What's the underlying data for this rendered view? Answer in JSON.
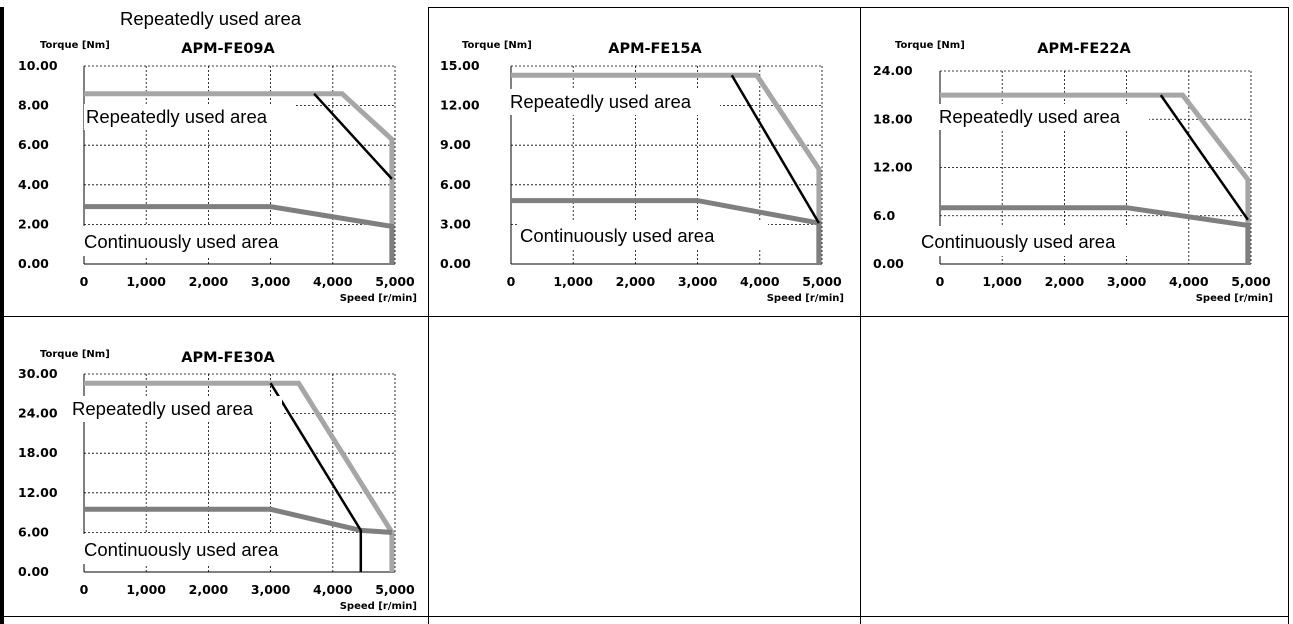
{
  "top_caption": "Repeatedly used area",
  "colors": {
    "peak_line": "#a6a6a6",
    "rated_line": "#7f7f7f",
    "limit_line": "#000000",
    "grid": "#000000"
  },
  "chart_data": [
    {
      "type": "line",
      "title": "APM-FE09A",
      "ylabel": "Torque [Nm]",
      "xlabel": "Speed [r/min]",
      "xlim": [
        0,
        5000
      ],
      "ylim": [
        0,
        10
      ],
      "x_ticks": [
        "0",
        "1,000",
        "2,000",
        "3,000",
        "4,000",
        "5,000"
      ],
      "y_ticks": [
        "0.00",
        "2.00",
        "4.00",
        "6.00",
        "8.00",
        "10.00"
      ],
      "grid": true,
      "annotations": [
        "Repeatedly used area",
        "Continuously used area"
      ],
      "series": [
        {
          "points": [
            [
              0,
              8.6
            ],
            [
              4150,
              8.6
            ],
            [
              4950,
              6.3
            ],
            [
              4950,
              0
            ]
          ]
        },
        {
          "points": [
            [
              0,
              2.9
            ],
            [
              3000,
              2.9
            ],
            [
              4950,
              1.9
            ],
            [
              4950,
              0
            ]
          ]
        },
        {
          "points": [
            [
              3700,
              8.6
            ],
            [
              4950,
              4.3
            ]
          ]
        }
      ]
    },
    {
      "type": "line",
      "title": "APM-FE15A",
      "ylabel": "Torque [Nm]",
      "xlabel": "Speed [r/min]",
      "xlim": [
        0,
        5000
      ],
      "ylim": [
        0,
        15
      ],
      "x_ticks": [
        "0",
        "1,000",
        "2,000",
        "3,000",
        "4,000",
        "5,000"
      ],
      "y_ticks": [
        "0.00",
        "3.00",
        "6.00",
        "9.00",
        "12.00",
        "15.00"
      ],
      "grid": true,
      "annotations": [
        "Repeatedly used area",
        "Continuously used area"
      ],
      "series": [
        {
          "points": [
            [
              0,
              14.3
            ],
            [
              3950,
              14.3
            ],
            [
              4950,
              7.2
            ],
            [
              4950,
              0
            ]
          ]
        },
        {
          "points": [
            [
              0,
              4.8
            ],
            [
              3000,
              4.8
            ],
            [
              4950,
              3.1
            ],
            [
              4950,
              0
            ]
          ]
        },
        {
          "points": [
            [
              3550,
              14.3
            ],
            [
              4950,
              3.1
            ]
          ]
        }
      ]
    },
    {
      "type": "line",
      "title": "APM-FE22A",
      "ylabel": "Torque [Nm]",
      "xlabel": "Speed [r/min]",
      "xlim": [
        0,
        5000
      ],
      "ylim": [
        0,
        24
      ],
      "x_ticks": [
        "0",
        "1,000",
        "2,000",
        "3,000",
        "4,000",
        "5,000"
      ],
      "y_ticks": [
        "0.00",
        "6.0",
        "12.00",
        "18.00",
        "24.00"
      ],
      "grid": true,
      "annotations": [
        "Repeatedly used area",
        "Continuously used area"
      ],
      "series": [
        {
          "points": [
            [
              0,
              21
            ],
            [
              3900,
              21
            ],
            [
              4950,
              10.5
            ],
            [
              4950,
              0
            ]
          ]
        },
        {
          "points": [
            [
              0,
              7
            ],
            [
              3000,
              7
            ],
            [
              4950,
              4.8
            ],
            [
              4950,
              0
            ]
          ]
        },
        {
          "points": [
            [
              3550,
              21
            ],
            [
              4950,
              5.5
            ]
          ]
        }
      ]
    },
    {
      "type": "line",
      "title": "APM-FE30A",
      "ylabel": "Torque [Nm]",
      "xlabel": "Speed [r/min]",
      "xlim": [
        0,
        5000
      ],
      "ylim": [
        0,
        30
      ],
      "x_ticks": [
        "0",
        "1,000",
        "2,000",
        "3,000",
        "4,000",
        "5,000"
      ],
      "y_ticks": [
        "0.00",
        "6.00",
        "12.00",
        "18.00",
        "24.00",
        "30.00"
      ],
      "grid": true,
      "annotations": [
        "Repeatedly used area",
        "Continuously used area"
      ],
      "series": [
        {
          "points": [
            [
              0,
              28.6
            ],
            [
              3450,
              28.6
            ],
            [
              4950,
              6
            ],
            [
              4950,
              0
            ]
          ]
        },
        {
          "points": [
            [
              0,
              9.5
            ],
            [
              3000,
              9.5
            ],
            [
              4450,
              6.3
            ],
            [
              4950,
              6
            ]
          ]
        },
        {
          "points": [
            [
              3000,
              28.6
            ],
            [
              4450,
              6.3
            ],
            [
              4450,
              0
            ]
          ]
        }
      ]
    }
  ]
}
